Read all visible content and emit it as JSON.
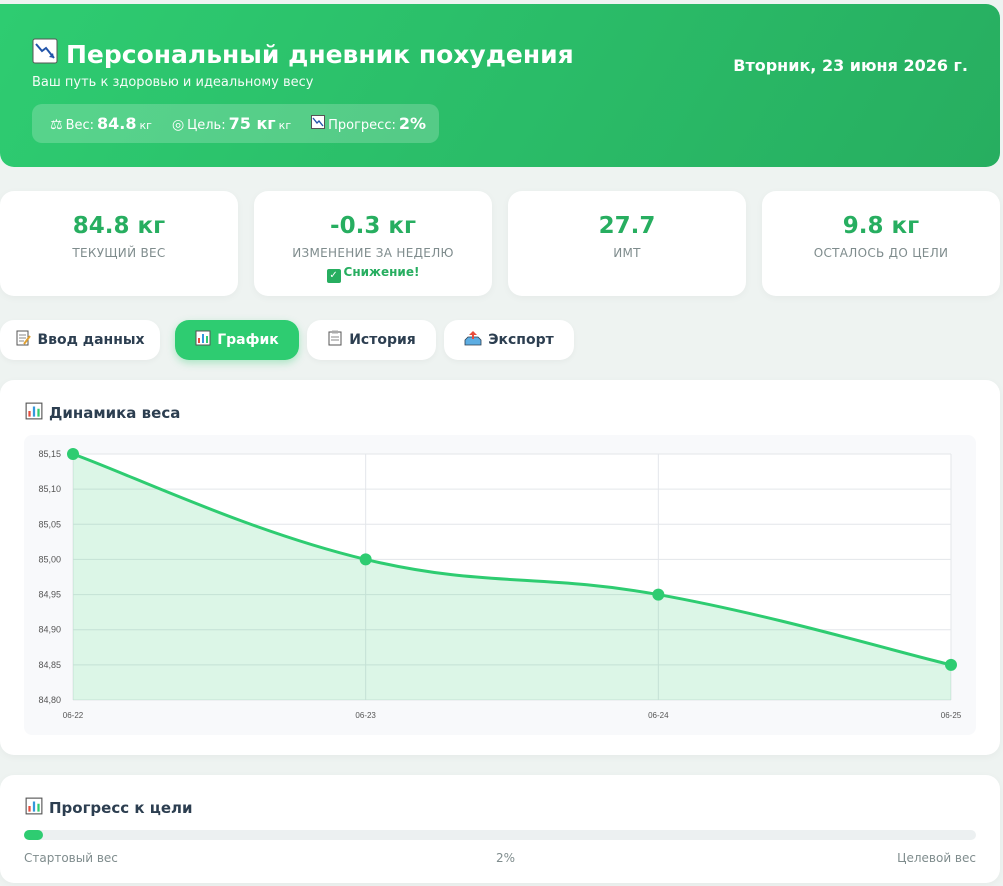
{
  "header": {
    "icon": "chart-decreasing-icon",
    "title": "Персональный дневник похудения",
    "subtitle": "Ваш путь к здоровью и идеальному весу",
    "date": "Вторник, 23 июня 2026 г.",
    "summary": {
      "weight_label": "Вес:",
      "weight_value": "84.8",
      "weight_unit": "кг",
      "goal_label": "Цель:",
      "goal_value": "75 кг",
      "goal_unit": "кг",
      "progress_label": "Прогресс:",
      "progress_value": "2%"
    }
  },
  "stats": [
    {
      "value": "84.8 кг",
      "label": "ТЕКУЩИЙ ВЕС"
    },
    {
      "value": "-0.3 кг",
      "label": "ИЗМЕНЕНИЕ ЗА НЕДЕЛЮ",
      "note": "Снижение!"
    },
    {
      "value": "27.7",
      "label": "ИМТ"
    },
    {
      "value": "9.8 кг",
      "label": "ОСТАЛОСЬ ДО ЦЕЛИ"
    }
  ],
  "tabs": [
    {
      "label": "Ввод данных",
      "icon": "memo-icon"
    },
    {
      "label": "График",
      "icon": "bar-chart-icon",
      "active": true
    },
    {
      "label": "История",
      "icon": "clipboard-icon"
    },
    {
      "label": "Экспорт",
      "icon": "outbox-icon"
    }
  ],
  "chart_card": {
    "title": "Динамика веса"
  },
  "chart_data": {
    "type": "area",
    "categories": [
      "06-22",
      "06-23",
      "06-24",
      "06-25"
    ],
    "series": [
      {
        "values": [
          85.15,
          85.0,
          84.95,
          84.85
        ]
      }
    ],
    "ylim": [
      84.8,
      85.15
    ],
    "yticks": [
      "85,15",
      "85,10",
      "85,05",
      "85,00",
      "84,95",
      "84,90",
      "84,85",
      "84,80"
    ],
    "grid": true,
    "color": "#2ecc71"
  },
  "progress_card": {
    "title": "Прогресс к цели",
    "progress": 0.02,
    "start_label": "Стартовый вес",
    "percent_label": "2%",
    "end_label": "Целевой вес"
  }
}
